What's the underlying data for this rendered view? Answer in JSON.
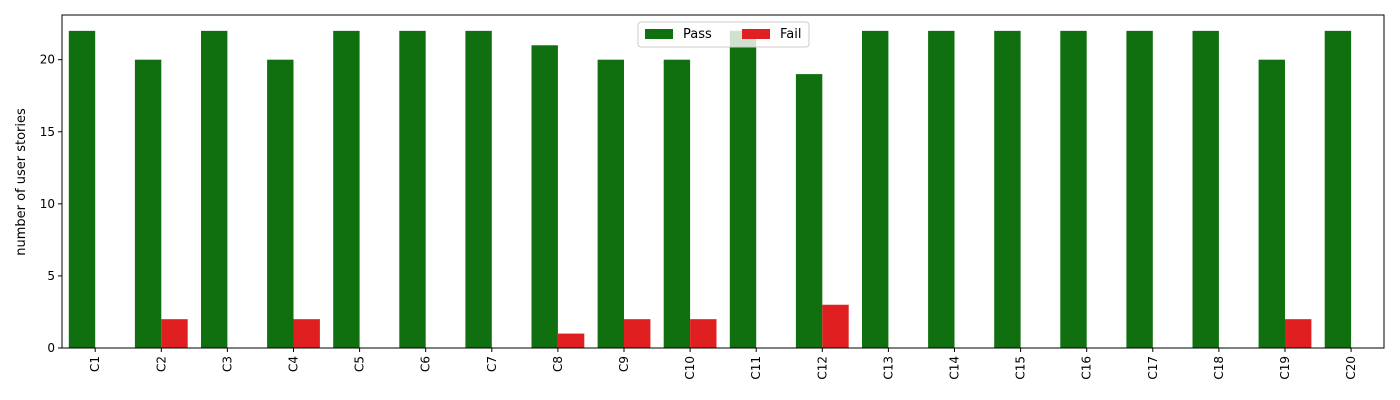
{
  "chart_data": {
    "type": "bar",
    "title": "",
    "xlabel": "",
    "ylabel": "number of user stories",
    "ylim": [
      0,
      23.1
    ],
    "yticks": [
      0,
      5,
      10,
      15,
      20
    ],
    "grid": false,
    "legend_position": "top-center",
    "categories": [
      "C1",
      "C2",
      "C3",
      "C4",
      "C5",
      "C6",
      "C7",
      "C8",
      "C9",
      "C10",
      "C11",
      "C12",
      "C13",
      "C14",
      "C15",
      "C16",
      "C17",
      "C18",
      "C19",
      "C20"
    ],
    "series": [
      {
        "name": "Pass",
        "color": "#107010",
        "values": [
          22,
          20,
          22,
          20,
          22,
          22,
          22,
          21,
          20,
          20,
          22,
          19,
          22,
          22,
          22,
          22,
          22,
          22,
          20,
          22
        ]
      },
      {
        "name": "Fail",
        "color": "#e02020",
        "values": [
          0,
          2,
          0,
          2,
          0,
          0,
          0,
          1,
          2,
          2,
          0,
          3,
          0,
          0,
          0,
          0,
          0,
          0,
          2,
          0
        ]
      }
    ]
  }
}
